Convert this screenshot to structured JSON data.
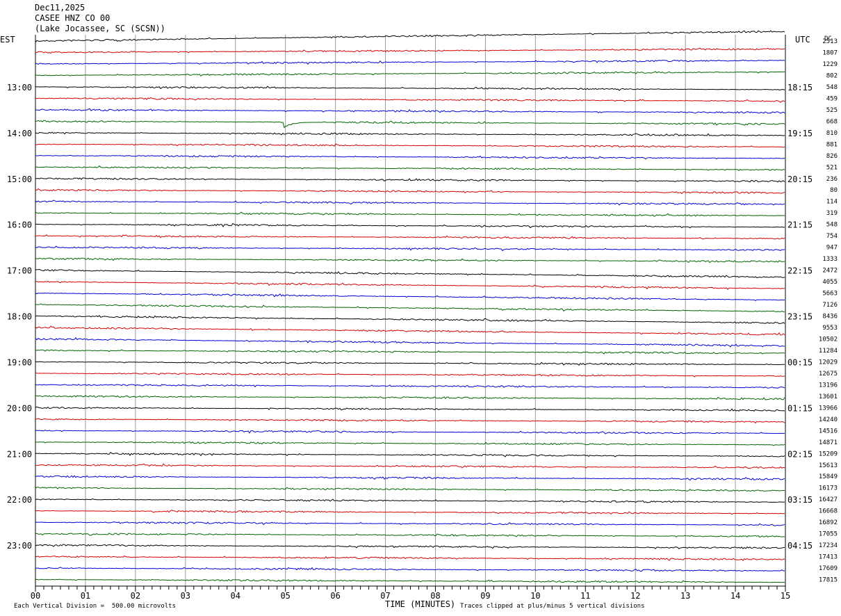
{
  "header": {
    "date": "Dec11,2025",
    "station": "CASEE HNZ CO 00",
    "location": "(Lake Jocassee, SC (SCSN))"
  },
  "chart_data": {
    "type": "line",
    "title": "",
    "left_axis_label": "EST",
    "right_axis_label": "UTC",
    "dc_label": "DC",
    "xlabel": "TIME (MINUTES)",
    "xlim": [
      0,
      15
    ],
    "x_ticks": [
      "00",
      "01",
      "02",
      "03",
      "04",
      "05",
      "06",
      "07",
      "08",
      "09",
      "10",
      "11",
      "12",
      "13",
      "14",
      "15"
    ],
    "trace_count": 48,
    "trace_colors": [
      "#000000",
      "#d40000",
      "#0000d4",
      "#006400"
    ],
    "left_hour_labels": [
      {
        "trace": 4,
        "label": "13:00"
      },
      {
        "trace": 8,
        "label": "14:00"
      },
      {
        "trace": 12,
        "label": "15:00"
      },
      {
        "trace": 16,
        "label": "16:00"
      },
      {
        "trace": 20,
        "label": "17:00"
      },
      {
        "trace": 24,
        "label": "18:00"
      },
      {
        "trace": 28,
        "label": "19:00"
      },
      {
        "trace": 32,
        "label": "20:00"
      },
      {
        "trace": 36,
        "label": "21:00"
      },
      {
        "trace": 40,
        "label": "22:00"
      },
      {
        "trace": 44,
        "label": "23:00"
      }
    ],
    "right_hour_labels": [
      {
        "trace": 4,
        "label": "18:15"
      },
      {
        "trace": 8,
        "label": "19:15"
      },
      {
        "trace": 12,
        "label": "20:15"
      },
      {
        "trace": 16,
        "label": "21:15"
      },
      {
        "trace": 20,
        "label": "22:15"
      },
      {
        "trace": 24,
        "label": "23:15"
      },
      {
        "trace": 28,
        "label": "00:15"
      },
      {
        "trace": 32,
        "label": "01:15"
      },
      {
        "trace": 36,
        "label": "02:15"
      },
      {
        "trace": 40,
        "label": "03:15"
      },
      {
        "trace": 44,
        "label": "04:15"
      }
    ],
    "dc_offsets": [
      "2513",
      "1807",
      "1229",
      "802",
      "548",
      "459",
      "525",
      "668",
      "810",
      "881",
      "826",
      "521",
      "236",
      "80",
      "114",
      "319",
      "548",
      "754",
      "947",
      "1333",
      "2472",
      "4055",
      "5663",
      "7126",
      "8436",
      "9553",
      "10502",
      "11284",
      "12029",
      "12675",
      "13196",
      "13601",
      "13966",
      "14240",
      "14516",
      "14871",
      "15209",
      "15613",
      "15849",
      "16173",
      "16427",
      "16668",
      "16892",
      "17055",
      "17234",
      "17413",
      "17609",
      "17815"
    ],
    "events": [
      {
        "trace": 7,
        "minute": 4.95,
        "amplitude_divisions": 5,
        "duration_minutes": 0.8
      }
    ],
    "footer": {
      "scale": "Each Vertical Division =  500.00 microvolts",
      "clip": "Traces clipped at plus/minus 5 vertical divisions"
    }
  }
}
